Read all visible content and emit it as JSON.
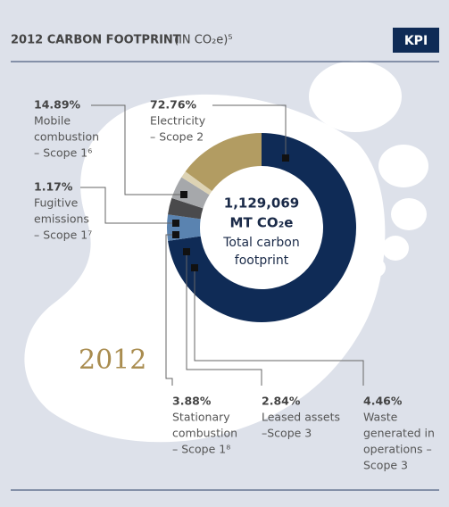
{
  "chart_data": {
    "type": "pie",
    "title": "2012 CARBON FOOTPRINT",
    "title_note": "(IN CO₂e)⁵",
    "badge": "KPI",
    "center_text": [
      "1,129,069",
      "MT CO₂e",
      "Total carbon",
      "footprint"
    ],
    "year": "2012",
    "categories": [
      [
        "Electricity",
        "– Scope 2"
      ],
      [
        "Waste",
        "generated in",
        "operations –",
        "Scope 3"
      ],
      [
        "Leased assets",
        "–Scope 3"
      ],
      [
        "Stationary",
        "combustion",
        "– Scope 1⁸"
      ],
      [
        "Fugitive",
        "emissions",
        "– Scope 1⁷"
      ],
      [
        "Mobile",
        "combustion",
        "– Scope 1⁶"
      ]
    ],
    "values": [
      72.76,
      4.46,
      2.84,
      3.88,
      1.17,
      14.89
    ],
    "value_labels": [
      "72.76%",
      "4.46%",
      "2.84%",
      "3.88%",
      "1.17%",
      "14.89%"
    ],
    "colors": [
      "#0f2b56",
      "#5a83b0",
      "#4a4a4c",
      "#a6a8ab",
      "#ddd3b4",
      "#b29c62"
    ],
    "donut": true
  }
}
